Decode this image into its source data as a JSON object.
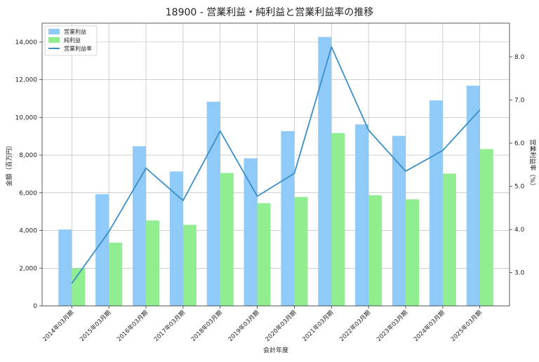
{
  "chart_data": {
    "type": "bar",
    "title": "18900 - 営業利益・純利益と営業利益率の推移",
    "xlabel": "会計年度",
    "ylabel": "金額（百万円）",
    "ylabel_right": "営業利益率（%）",
    "categories": [
      "2014年03月期",
      "2015年03月期",
      "2016年03月期",
      "2017年03月期",
      "2018年03月期",
      "2019年03月期",
      "2020年03月期",
      "2021年03月期",
      "2022年03月期",
      "2023年03月期",
      "2024年03月期",
      "2025年03月期"
    ],
    "ylim": [
      0,
      15000
    ],
    "yticks": [
      0,
      2000,
      4000,
      6000,
      8000,
      10000,
      12000,
      14000
    ],
    "ytick_labels": [
      "0",
      "2,000",
      "4,000",
      "6,000",
      "8,000",
      "10,000",
      "12,000",
      "14,000"
    ],
    "ylim_right": [
      2.23,
      8.78
    ],
    "yticks_right": [
      3.0,
      4.0,
      5.0,
      6.0,
      7.0,
      8.0
    ],
    "ytick_labels_right": [
      "3.0",
      "4.0",
      "5.0",
      "6.0",
      "7.0",
      "8.0"
    ],
    "grid": true,
    "legend_position": "top-left",
    "series": [
      {
        "name": "営業利益",
        "kind": "bar",
        "axis": "left",
        "color": "#90caf9",
        "values": [
          4050,
          5930,
          8470,
          7130,
          10830,
          7830,
          9270,
          14270,
          9630,
          9020,
          10900,
          11680
        ]
      },
      {
        "name": "純利益",
        "kind": "bar",
        "axis": "left",
        "color": "#90ee90",
        "values": [
          2000,
          3350,
          4530,
          4300,
          7050,
          5450,
          5780,
          9170,
          5870,
          5650,
          7020,
          8320
        ]
      },
      {
        "name": "営業利益率",
        "kind": "line",
        "axis": "right",
        "color": "#3a8fc8",
        "values": [
          2.75,
          3.95,
          5.42,
          4.67,
          6.28,
          4.77,
          5.3,
          8.23,
          6.3,
          5.35,
          5.83,
          6.77
        ]
      }
    ]
  }
}
